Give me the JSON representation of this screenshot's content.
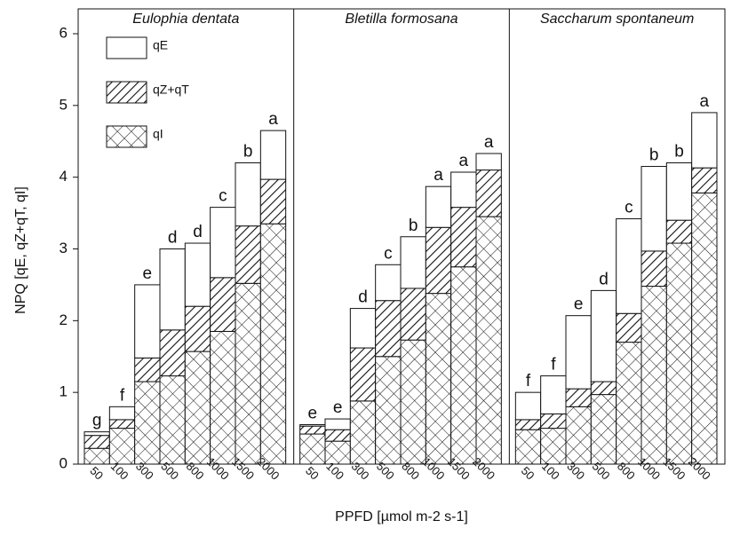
{
  "chart_data": {
    "type": "bar",
    "stacked": true,
    "ylabel": "NPQ [qE, qZ+qT, qI]",
    "xlabel": "PPFD [µmol m-2 s-1]",
    "ylim": [
      0,
      6
    ],
    "yticks": [
      0,
      1,
      2,
      3,
      4,
      5,
      6
    ],
    "categories": [
      "50",
      "100",
      "300",
      "500",
      "800",
      "1000",
      "1500",
      "2000"
    ],
    "series": [
      {
        "name": "qI",
        "pattern": "cross"
      },
      {
        "name": "qZ+qT",
        "pattern": "hatch"
      },
      {
        "name": "qE",
        "pattern": "none"
      }
    ],
    "panels": [
      {
        "title": "Eulophia dentata",
        "series": [
          {
            "values": [
              0.22,
              0.5,
              1.15,
              1.23,
              1.57,
              1.85,
              2.52,
              3.35
            ]
          },
          {
            "values": [
              0.18,
              0.12,
              0.33,
              0.64,
              0.63,
              0.75,
              0.8,
              0.62
            ]
          },
          {
            "values": [
              0.05,
              0.18,
              1.02,
              1.13,
              0.88,
              0.98,
              0.88,
              0.68
            ]
          }
        ],
        "annotations": [
          "g",
          "f",
          "e",
          "d",
          "d",
          "c",
          "b",
          "a"
        ]
      },
      {
        "title": "Bletilla formosana",
        "series": [
          {
            "values": [
              0.42,
              0.32,
              0.88,
              1.5,
              1.73,
              2.38,
              2.75,
              3.45
            ]
          },
          {
            "values": [
              0.11,
              0.16,
              0.74,
              0.78,
              0.72,
              0.92,
              0.83,
              0.65
            ]
          },
          {
            "values": [
              0.02,
              0.15,
              0.55,
              0.5,
              0.72,
              0.57,
              0.49,
              0.23
            ]
          }
        ],
        "annotations": [
          "e",
          "e",
          "d",
          "c",
          "b",
          "a",
          "a",
          "a"
        ]
      },
      {
        "title": "Saccharum spontaneum",
        "series": [
          {
            "values": [
              0.48,
              0.5,
              0.8,
              0.97,
              1.7,
              2.48,
              3.08,
              3.78
            ]
          },
          {
            "values": [
              0.14,
              0.2,
              0.25,
              0.18,
              0.4,
              0.49,
              0.32,
              0.35
            ]
          },
          {
            "values": [
              0.38,
              0.53,
              1.02,
              1.27,
              1.32,
              1.18,
              0.8,
              0.77
            ]
          }
        ],
        "annotations": [
          "f",
          "f",
          "e",
          "d",
          "c",
          "b",
          "b",
          "a"
        ]
      }
    ]
  }
}
